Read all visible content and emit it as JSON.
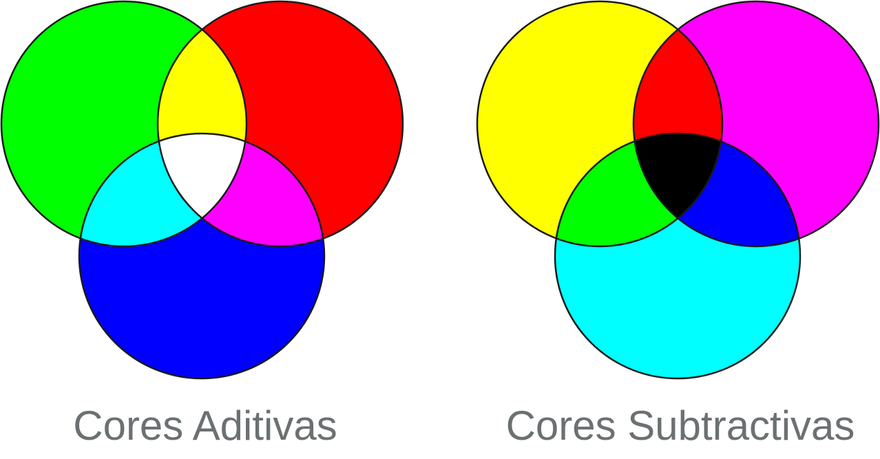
{
  "additive": {
    "caption": "Cores Aditivas",
    "circles": [
      {
        "name": "green-circle",
        "color": "#00ff00"
      },
      {
        "name": "red-circle",
        "color": "#ff0000"
      },
      {
        "name": "blue-circle",
        "color": "#0000ff"
      }
    ],
    "overlaps": {
      "green_red": "#ffff00",
      "green_blue": "#00ffff",
      "red_blue": "#ff00ff",
      "all": "#ffffff"
    }
  },
  "subtractive": {
    "caption": "Cores Subtractivas",
    "circles": [
      {
        "name": "yellow-circle",
        "color": "#ffff00"
      },
      {
        "name": "magenta-circle",
        "color": "#ff00ff"
      },
      {
        "name": "cyan-circle",
        "color": "#00ffff"
      }
    ],
    "overlaps": {
      "yellow_magenta": "#ff0000",
      "yellow_cyan": "#00ff00",
      "magenta_cyan": "#0000ff",
      "all": "#000000"
    }
  },
  "caption_color": "#6b7072",
  "outline_color": "#1a1a1a"
}
